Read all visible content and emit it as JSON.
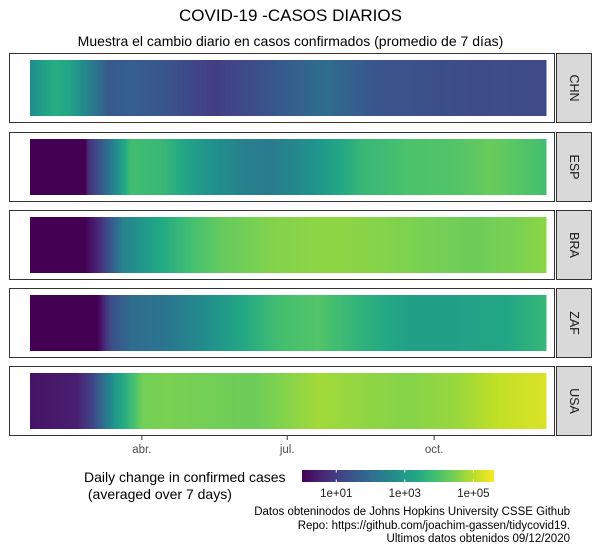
{
  "title": "COVID-19 -CASOS DIARIOS",
  "subtitle": "Muestra el cambio diario en casos confirmados (promedio de 7 días)",
  "caption": [
    "Datos obteninodos de Johns Hopkins University CSSE Github",
    "Repo: https://github.com/joachim-gassen/tidycovid19.",
    "Ultimos datos obtenidos 09/12/2020"
  ],
  "legend": {
    "title_lines": [
      "Daily change in confirmed cases",
      " (averaged over 7 days)"
    ],
    "scale": "log10",
    "range": [
      1,
      400000
    ],
    "palette": "viridis",
    "tick_labels": [
      "1e+01",
      "1e+03",
      "1e+05"
    ],
    "tick_values": [
      10,
      1000,
      100000
    ]
  },
  "chart_data": {
    "type": "heatmap",
    "title": "COVID-19 -CASOS DIARIOS",
    "subtitle": "Muestra el cambio diario en casos confirmados (promedio de 7 días)",
    "x": {
      "type": "date",
      "start": "2020-01-22",
      "end": "2020-12-09",
      "tick_labels": [
        "abr.",
        "jul.",
        "oct."
      ],
      "tick_dates": [
        "2020-04-01",
        "2020-07-01",
        "2020-10-01"
      ]
    },
    "color_scale": {
      "palette": "viridis",
      "scale": "log10",
      "min": 1,
      "max": 400000
    },
    "series": [
      {
        "name": "CHN",
        "keypoints": [
          [
            "2020-01-22",
            500
          ],
          [
            "2020-02-05",
            3000
          ],
          [
            "2020-02-15",
            2000
          ],
          [
            "2020-02-25",
            400
          ],
          [
            "2020-03-10",
            40
          ],
          [
            "2020-03-25",
            50
          ],
          [
            "2020-04-15",
            30
          ],
          [
            "2020-05-15",
            10
          ],
          [
            "2020-06-15",
            25
          ],
          [
            "2020-07-25",
            100
          ],
          [
            "2020-08-25",
            30
          ],
          [
            "2020-10-15",
            20
          ],
          [
            "2020-12-09",
            18
          ]
        ]
      },
      {
        "name": "ESP",
        "keypoints": [
          [
            "2020-01-22",
            1
          ],
          [
            "2020-02-25",
            1
          ],
          [
            "2020-02-27",
            5
          ],
          [
            "2020-03-10",
            100
          ],
          [
            "2020-03-25",
            8000
          ],
          [
            "2020-04-15",
            5000
          ],
          [
            "2020-05-10",
            800
          ],
          [
            "2020-06-01",
            300
          ],
          [
            "2020-06-20",
            200
          ],
          [
            "2020-07-15",
            600
          ],
          [
            "2020-08-15",
            5000
          ],
          [
            "2020-09-15",
            10000
          ],
          [
            "2020-10-15",
            12000
          ],
          [
            "2020-11-05",
            20000
          ],
          [
            "2020-12-09",
            8000
          ]
        ]
      },
      {
        "name": "BRA",
        "keypoints": [
          [
            "2020-01-22",
            1
          ],
          [
            "2020-02-25",
            1
          ],
          [
            "2020-03-05",
            5
          ],
          [
            "2020-03-20",
            300
          ],
          [
            "2020-04-10",
            2000
          ],
          [
            "2020-05-01",
            8000
          ],
          [
            "2020-05-20",
            18000
          ],
          [
            "2020-06-20",
            35000
          ],
          [
            "2020-07-25",
            45000
          ],
          [
            "2020-08-20",
            40000
          ],
          [
            "2020-09-20",
            30000
          ],
          [
            "2020-10-25",
            22000
          ],
          [
            "2020-11-20",
            30000
          ],
          [
            "2020-12-09",
            42000
          ]
        ]
      },
      {
        "name": "ZAF",
        "keypoints": [
          [
            "2020-01-22",
            1
          ],
          [
            "2020-03-04",
            1
          ],
          [
            "2020-03-12",
            20
          ],
          [
            "2020-03-25",
            100
          ],
          [
            "2020-04-15",
            150
          ],
          [
            "2020-05-10",
            500
          ],
          [
            "2020-06-01",
            2000
          ],
          [
            "2020-06-25",
            8000
          ],
          [
            "2020-07-20",
            12000
          ],
          [
            "2020-08-15",
            4000
          ],
          [
            "2020-09-15",
            1500
          ],
          [
            "2020-10-15",
            1500
          ],
          [
            "2020-11-15",
            2200
          ],
          [
            "2020-12-09",
            5000
          ]
        ]
      },
      {
        "name": "USA",
        "keypoints": [
          [
            "2020-01-22",
            2
          ],
          [
            "2020-02-20",
            3
          ],
          [
            "2020-03-01",
            15
          ],
          [
            "2020-03-15",
            1000
          ],
          [
            "2020-04-01",
            25000
          ],
          [
            "2020-04-15",
            30000
          ],
          [
            "2020-05-15",
            25000
          ],
          [
            "2020-06-10",
            22000
          ],
          [
            "2020-07-20",
            65000
          ],
          [
            "2020-08-20",
            45000
          ],
          [
            "2020-09-15",
            38000
          ],
          [
            "2020-10-15",
            55000
          ],
          [
            "2020-11-10",
            120000
          ],
          [
            "2020-12-09",
            200000
          ]
        ]
      }
    ]
  }
}
